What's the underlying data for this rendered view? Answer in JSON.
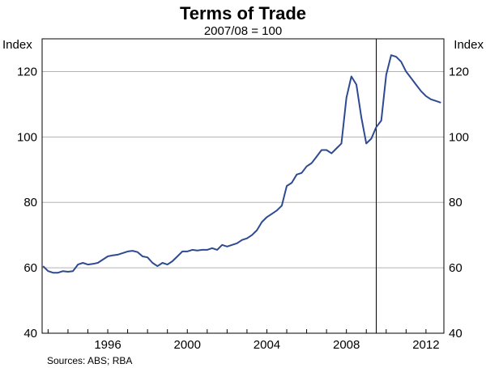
{
  "chart_data": {
    "type": "line",
    "title": "Terms of Trade",
    "subtitle": "2007/08 = 100",
    "ylabel_left": "Index",
    "ylabel_right": "Index",
    "source": "Sources: ABS; RBA",
    "ylim": [
      40,
      130
    ],
    "yticks": [
      40,
      60,
      80,
      100,
      120
    ],
    "xlim": [
      1992.7,
      2012.9
    ],
    "xticks": [
      1996,
      2000,
      2004,
      2008,
      2012
    ],
    "grid": true,
    "vline": 2009.5,
    "series": [
      {
        "color": "#2e4a91",
        "x": [
          1992.75,
          1993.0,
          1993.25,
          1993.5,
          1993.75,
          1994.0,
          1994.25,
          1994.5,
          1994.75,
          1995.0,
          1995.25,
          1995.5,
          1995.75,
          1996.0,
          1996.25,
          1996.5,
          1996.75,
          1997.0,
          1997.25,
          1997.5,
          1997.75,
          1998.0,
          1998.25,
          1998.5,
          1998.75,
          1999.0,
          1999.25,
          1999.5,
          1999.75,
          2000.0,
          2000.25,
          2000.5,
          2000.75,
          2001.0,
          2001.25,
          2001.5,
          2001.75,
          2002.0,
          2002.25,
          2002.5,
          2002.75,
          2003.0,
          2003.25,
          2003.5,
          2003.75,
          2004.0,
          2004.25,
          2004.5,
          2004.75,
          2005.0,
          2005.25,
          2005.5,
          2005.75,
          2006.0,
          2006.25,
          2006.5,
          2006.75,
          2007.0,
          2007.25,
          2007.5,
          2007.75,
          2008.0,
          2008.25,
          2008.5,
          2008.75,
          2009.0,
          2009.25,
          2009.5,
          2009.75,
          2010.0,
          2010.25,
          2010.5,
          2010.75,
          2011.0,
          2011.25,
          2011.5,
          2011.75,
          2012.0,
          2012.25,
          2012.5,
          2012.75
        ],
        "y": [
          60.5,
          59.0,
          58.5,
          58.5,
          59.0,
          58.8,
          59.0,
          61.0,
          61.5,
          61.0,
          61.2,
          61.5,
          62.5,
          63.5,
          63.8,
          64.0,
          64.5,
          65.0,
          65.2,
          64.8,
          63.5,
          63.2,
          61.5,
          60.5,
          61.5,
          61.0,
          62.0,
          63.5,
          65.0,
          65.0,
          65.5,
          65.3,
          65.5,
          65.5,
          66.0,
          65.5,
          67.0,
          66.5,
          67.0,
          67.5,
          68.5,
          69.0,
          70.0,
          71.5,
          74.0,
          75.5,
          76.5,
          77.5,
          79.0,
          85.0,
          86.0,
          88.5,
          89.0,
          91.0,
          92.0,
          94.0,
          96.0,
          96.0,
          95.0,
          96.5,
          98.0,
          112.0,
          118.5,
          116.0,
          106.0,
          98.0,
          99.5,
          103.0,
          105.0,
          119.0,
          125.0,
          124.5,
          123.0,
          120.0,
          118.0,
          116.0,
          114.0,
          112.5,
          111.5,
          111.0,
          110.5
        ]
      }
    ]
  }
}
